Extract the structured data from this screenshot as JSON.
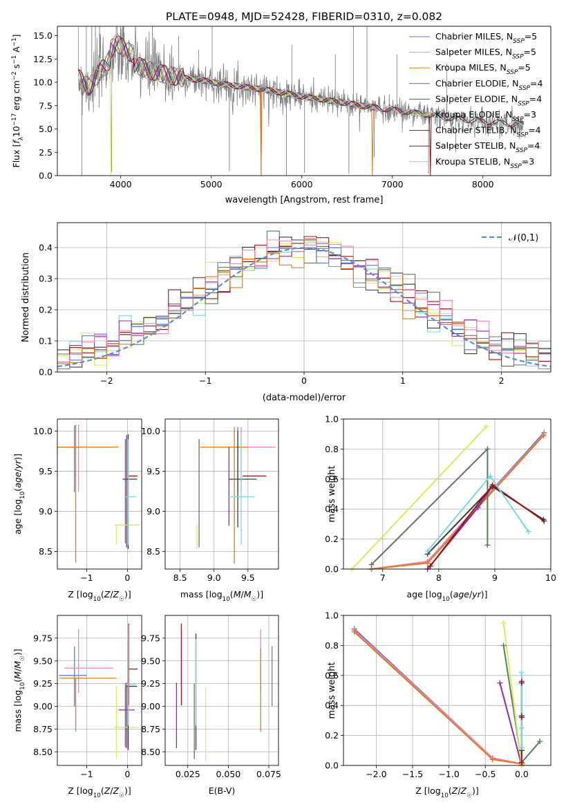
{
  "figure_title": "PLATE=0948, MJD=52428, FIBERID=0310, z=0.082",
  "colors": {
    "Chabrier MILES": "#5a7ad6",
    "Salpeter MILES": "#ee82b6",
    "Kroupa MILES": "#e07b1a",
    "Chabrier ELODIE": "#5d7a5d",
    "Salpeter ELODIE": "#8e2aa6",
    "Kroupa ELODIE": "#d6ec5c",
    "Chabrier STELIB": "#3a3a3a",
    "Salpeter STELIB": "#9b1111",
    "Kroupa STELIB": "#7ad8dc",
    "data": "#7f7f7f",
    "normal_curve": "#5b8bd8"
  },
  "chart_data": [
    {
      "id": "spectrum",
      "type": "line",
      "xlabel": "wavelength [Angstrom, rest frame]",
      "ylabel": "Flux [f_λ10^-17 erg cm^-2 s^-1 A^-1]",
      "xlim": [
        3300,
        8750
      ],
      "ylim": [
        0,
        16
      ],
      "xticks": [
        4000,
        5000,
        6000,
        7000,
        8000
      ],
      "yticks": [
        0.0,
        2.5,
        5.0,
        7.5,
        10.0,
        12.5,
        15.0
      ],
      "legend": "upper right",
      "legend_entries": [
        {
          "name": "Chabrier MILES",
          "n": "5"
        },
        {
          "name": "Salpeter MILES",
          "n": "5"
        },
        {
          "name": "Kroupa MILES",
          "n": "5"
        },
        {
          "name": "Chabrier ELODIE",
          "n": "4"
        },
        {
          "name": "Salpeter ELODIE",
          "n": "4"
        },
        {
          "name": "Kroupa ELODIE",
          "n": "3"
        },
        {
          "name": "Chabrier STELIB",
          "n": "4"
        },
        {
          "name": "Salpeter STELIB",
          "n": "4"
        },
        {
          "name": "Kroupa STELIB",
          "n": "3"
        }
      ],
      "continuum": [
        [
          3530,
          10.5
        ],
        [
          3650,
          9.5
        ],
        [
          3800,
          11.5
        ],
        [
          3950,
          13.2
        ],
        [
          4100,
          12.2
        ],
        [
          4300,
          11.3
        ],
        [
          4600,
          10.6
        ],
        [
          4900,
          10.2
        ],
        [
          5200,
          9.7
        ],
        [
          5600,
          9.2
        ],
        [
          6000,
          8.5
        ],
        [
          6400,
          7.9
        ],
        [
          6800,
          7.3
        ],
        [
          7200,
          6.8
        ],
        [
          7600,
          6.2
        ],
        [
          8000,
          5.8
        ],
        [
          8400,
          5.5
        ]
      ],
      "spikes": [
        [
          3570,
          0
        ],
        [
          3620,
          16
        ],
        [
          3680,
          16
        ],
        [
          3720,
          16
        ],
        [
          3900,
          0.4
        ],
        [
          4020,
          16
        ],
        [
          4350,
          16
        ],
        [
          4640,
          15
        ],
        [
          4860,
          13.5
        ],
        [
          5010,
          16
        ],
        [
          5200,
          0.5
        ],
        [
          5550,
          0
        ],
        [
          5830,
          0
        ],
        [
          5890,
          14
        ],
        [
          6030,
          0.3
        ],
        [
          6370,
          13
        ],
        [
          6520,
          0.2
        ],
        [
          6570,
          16
        ],
        [
          6720,
          16
        ],
        [
          6800,
          2
        ],
        [
          7050,
          13
        ],
        [
          7400,
          0.2
        ],
        [
          7600,
          12
        ],
        [
          7700,
          2.5
        ]
      ],
      "grid": false
    },
    {
      "id": "residuals",
      "type": "step",
      "xlabel": "(data-model)/error",
      "ylabel": "Normed distribution",
      "xlim": [
        -2.5,
        2.5
      ],
      "ylim": [
        0,
        0.48
      ],
      "xticks": [
        -2,
        -1,
        0,
        1,
        2
      ],
      "yticks": [
        0.0,
        0.1,
        0.2,
        0.3,
        0.4
      ],
      "bin_width": 0.125,
      "legend": "upper right",
      "legend_entries": [
        "𝒩(0,1)"
      ],
      "grid": true
    },
    {
      "id": "age-vs-Z",
      "type": "errorbar",
      "xlabel": "Z [log10(Z/Z☉)]",
      "ylabel": "age  [log10(age/yr)]",
      "xlim": [
        -1.72,
        0.35
      ],
      "ylim": [
        8.28,
        10.15
      ],
      "xticks": [
        -1,
        0
      ],
      "yticks": [
        8.5,
        9.0,
        9.5,
        10.0
      ],
      "grid": true,
      "points": [
        {
          "m": "Chabrier MILES",
          "x": -1.3,
          "xe": [
            0.42,
            0
          ],
          "y": 9.8,
          "ye": [
            0.56,
            0.27
          ]
        },
        {
          "m": "Salpeter MILES",
          "x": -1.2,
          "xe": [
            0.0,
            0
          ],
          "y": 9.8,
          "ye": [
            0.56,
            0.28
          ]
        },
        {
          "m": "Kroupa MILES",
          "x": -1.27,
          "xe": [
            0.43,
            1.05
          ],
          "y": 9.8,
          "ye": [
            1.44,
            0.28
          ]
        },
        {
          "m": "Chabrier ELODIE",
          "x": -0.05,
          "xe": [
            0.05,
            0.05
          ],
          "y": 9.4,
          "ye": [
            0.8,
            0.5
          ]
        },
        {
          "m": "Salpeter ELODIE",
          "x": -0.02,
          "xe": [
            0.1,
            0.05
          ],
          "y": 9.4,
          "ye": [
            0.85,
            0.55
          ]
        },
        {
          "m": "Kroupa ELODIE",
          "x": -0.27,
          "xe": [
            0.05,
            0.58
          ],
          "y": 8.83,
          "ye": [
            0.25,
            0.0
          ]
        },
        {
          "m": "Chabrier STELIB",
          "x": 0.02,
          "xe": [
            0.05,
            0.22
          ],
          "y": 9.4,
          "ye": [
            0.87,
            0.56
          ]
        },
        {
          "m": "Salpeter STELIB",
          "x": 0.03,
          "xe": [
            0.0,
            0.22
          ],
          "y": 9.44,
          "ye": [
            0.0,
            0.0
          ]
        },
        {
          "m": "Kroupa STELIB",
          "x": 0.02,
          "xe": [
            0.05,
            0.2
          ],
          "y": 9.18,
          "ye": [
            0.6,
            0.72
          ]
        }
      ]
    },
    {
      "id": "age-vs-mass",
      "type": "errorbar",
      "xlabel": "mass [log10(M/M☉)]",
      "ylabel": "",
      "xlim": [
        8.28,
        9.95
      ],
      "ylim": [
        8.28,
        10.15
      ],
      "xticks": [
        8.5,
        9.0,
        9.5
      ],
      "yticks": [
        8.5,
        9.0,
        9.5,
        10.0
      ],
      "grid": true,
      "points": [
        {
          "m": "Chabrier MILES",
          "x": 9.35,
          "xe": [
            0.08,
            0.08
          ],
          "y": 9.8,
          "ye": [
            0.56,
            0.25
          ]
        },
        {
          "m": "Salpeter MILES",
          "x": 9.4,
          "xe": [
            0.1,
            0.5
          ],
          "y": 9.8,
          "ye": [
            0.56,
            0.25
          ]
        },
        {
          "m": "Kroupa MILES",
          "x": 9.3,
          "xe": [
            0.5,
            0.2
          ],
          "y": 9.8,
          "ye": [
            1.45,
            0.25
          ]
        },
        {
          "m": "Chabrier ELODIE",
          "x": 8.78,
          "xe": [
            0.0,
            0.0
          ],
          "y": 9.8,
          "ye": [
            1.25,
            0.1
          ]
        },
        {
          "m": "Salpeter ELODIE",
          "x": 9.22,
          "xe": [
            0.0,
            0.0
          ],
          "y": 9.35,
          "ye": [
            0.53,
            0.45
          ]
        },
        {
          "m": "Kroupa ELODIE",
          "x": 8.75,
          "xe": [
            0.0,
            0.0
          ],
          "y": 8.83,
          "ye": [
            0.3,
            0.0
          ]
        },
        {
          "m": "Chabrier STELIB",
          "x": 9.35,
          "xe": [
            0.13,
            0.28
          ],
          "y": 9.4,
          "ye": [
            0.6,
            0.6
          ]
        },
        {
          "m": "Salpeter STELIB",
          "x": 9.42,
          "xe": [
            0.0,
            0.35
          ],
          "y": 9.44,
          "ye": [
            0.0,
            0.0
          ]
        },
        {
          "m": "Kroupa STELIB",
          "x": 9.4,
          "xe": [
            0.2,
            0.2
          ],
          "y": 9.18,
          "ye": [
            0.6,
            0.75
          ]
        }
      ]
    },
    {
      "id": "weight-vs-age",
      "type": "line",
      "xlabel": "age  [log10(age/yr)]",
      "ylabel": "mass weight",
      "xlim": [
        6.3,
        10.0
      ],
      "ylim": [
        0,
        1.0
      ],
      "xticks": [
        7,
        8,
        9,
        10
      ],
      "yticks": [
        0.0,
        0.2,
        0.4,
        0.6,
        0.8,
        1.0
      ],
      "grid": true,
      "series": [
        {
          "m": "Chabrier MILES",
          "x": [
            6.8,
            7.8,
            9.88
          ],
          "y": [
            0.0,
            0.05,
            0.91
          ]
        },
        {
          "m": "Salpeter MILES",
          "x": [
            6.8,
            7.8,
            9.88
          ],
          "y": [
            0.0,
            0.05,
            0.9
          ]
        },
        {
          "m": "Kroupa MILES",
          "x": [
            6.8,
            7.8,
            9.87
          ],
          "y": [
            0.0,
            0.04,
            0.89
          ]
        },
        {
          "m": "Chabrier ELODIE",
          "x": [
            6.8,
            8.87,
            8.87
          ],
          "y": [
            0.03,
            0.8,
            0.16
          ]
        },
        {
          "m": "Salpeter ELODIE",
          "x": [
            7.8,
            8.7,
            8.95
          ],
          "y": [
            0.0,
            0.41,
            0.55
          ]
        },
        {
          "m": "Kroupa ELODIE",
          "x": [
            6.45,
            8.85
          ],
          "y": [
            0.0,
            0.95
          ]
        },
        {
          "m": "Chabrier STELIB",
          "x": [
            7.8,
            8.96,
            9.87
          ],
          "y": [
            0.1,
            0.55,
            0.33
          ]
        },
        {
          "m": "Salpeter STELIB",
          "x": [
            7.85,
            8.96,
            9.88
          ],
          "y": [
            0.02,
            0.56,
            0.32
          ]
        },
        {
          "m": "Kroupa STELIB",
          "x": [
            7.8,
            8.92,
            9.6
          ],
          "y": [
            0.12,
            0.62,
            0.25
          ]
        }
      ]
    },
    {
      "id": "mass-vs-Z",
      "type": "errorbar",
      "xlabel": "Z [log10(Z/Z☉)]",
      "ylabel": "mass [log10(M/M☉)]",
      "xlim": [
        -1.72,
        0.35
      ],
      "ylim": [
        8.35,
        10.0
      ],
      "xticks": [
        -1,
        0
      ],
      "yticks": [
        8.5,
        8.75,
        9.0,
        9.25,
        9.5,
        9.75
      ],
      "grid": true,
      "points": [
        {
          "m": "Chabrier MILES",
          "x": -1.3,
          "xe": [
            0.38,
            0.3
          ],
          "y": 9.34,
          "ye": [
            0.34,
            0.32
          ]
        },
        {
          "m": "Salpeter MILES",
          "x": -1.2,
          "xe": [
            0.35,
            0.85
          ],
          "y": 9.42,
          "ye": [
            0.27,
            0.43
          ]
        },
        {
          "m": "Kroupa MILES",
          "x": -1.27,
          "xe": [
            0.4,
            1.0
          ],
          "y": 9.31,
          "ye": [
            0.59,
            0.0
          ]
        },
        {
          "m": "Chabrier ELODIE",
          "x": -0.05,
          "xe": [
            0.05,
            0.05
          ],
          "y": 8.77,
          "ye": [
            0.22,
            0.48
          ]
        },
        {
          "m": "Salpeter ELODIE",
          "x": -0.02,
          "xe": [
            0.2,
            0.2
          ],
          "y": 8.96,
          "ye": [
            0.42,
            0.3
          ]
        },
        {
          "m": "Kroupa ELODIE",
          "x": -0.27,
          "xe": [
            0.05,
            0.55
          ],
          "y": 8.77,
          "ye": [
            0.35,
            0.45
          ]
        },
        {
          "m": "Chabrier STELIB",
          "x": 0.02,
          "xe": [
            0.05,
            0.22
          ],
          "y": 9.22,
          "ye": [
            0.7,
            0.5
          ]
        },
        {
          "m": "Salpeter STELIB",
          "x": 0.03,
          "xe": [
            0.0,
            0.22
          ],
          "y": 9.41,
          "ye": [
            0.4,
            0.5
          ]
        },
        {
          "m": "Kroupa STELIB",
          "x": 0.02,
          "xe": [
            0.05,
            0.2
          ],
          "y": 9.24,
          "ye": [
            0.45,
            0.65
          ]
        }
      ]
    },
    {
      "id": "mass-vs-EBV",
      "type": "errorbar",
      "xlabel": "E(B-V)",
      "ylabel": "",
      "xlim": [
        0.011,
        0.081
      ],
      "ylim": [
        8.35,
        10.0
      ],
      "xticks": [
        0.025,
        0.05,
        0.075
      ],
      "yticks": [
        8.5,
        8.75,
        9.0,
        9.25,
        9.5,
        9.75
      ],
      "grid": true,
      "points": [
        {
          "m": "Chabrier MILES",
          "x": 0.077,
          "y": 9.34,
          "ye": [
            0.34,
            0.32
          ]
        },
        {
          "m": "Salpeter MILES",
          "x": 0.07,
          "y": 9.42,
          "ye": [
            0.27,
            0.43
          ]
        },
        {
          "m": "Kroupa MILES",
          "x": 0.07,
          "y": 9.31,
          "ye": [
            0.59,
            0.33
          ]
        },
        {
          "m": "Chabrier ELODIE",
          "x": 0.029,
          "y": 8.77,
          "ye": [
            0.35,
            0.48
          ]
        },
        {
          "m": "Salpeter ELODIE",
          "x": 0.018,
          "y": 8.96,
          "ye": [
            0.42,
            0.3
          ]
        },
        {
          "m": "Kroupa ELODIE",
          "x": 0.036,
          "y": 8.85,
          "ye": [
            0.45,
            0.36
          ]
        },
        {
          "m": "Chabrier STELIB",
          "x": 0.03,
          "y": 9.22,
          "ye": [
            0.7,
            0.58
          ]
        },
        {
          "m": "Salpeter STELIB",
          "x": 0.021,
          "y": 9.41,
          "ye": [
            0.4,
            0.5
          ]
        },
        {
          "m": "Kroupa STELIB",
          "x": 0.03,
          "y": 9.24,
          "ye": [
            0.45,
            0.5
          ]
        }
      ]
    },
    {
      "id": "weight-vs-Z",
      "type": "line",
      "xlabel": "Z [log10(Z/Z☉)]",
      "ylabel": "mass weight",
      "xlim": [
        -2.45,
        0.4
      ],
      "ylim": [
        0,
        1.0
      ],
      "xticks": [
        -2.0,
        -1.5,
        -1.0,
        -0.5,
        0.0
      ],
      "yticks": [
        0.0,
        0.2,
        0.4,
        0.6,
        0.8,
        1.0
      ],
      "grid": true,
      "series": [
        {
          "m": "Chabrier MILES",
          "x": [
            -2.3,
            -0.4,
            0.0
          ],
          "y": [
            0.91,
            0.05,
            0.01
          ]
        },
        {
          "m": "Salpeter MILES",
          "x": [
            -2.3,
            -0.4,
            0.0
          ],
          "y": [
            0.9,
            0.05,
            0.01
          ]
        },
        {
          "m": "Kroupa MILES",
          "x": [
            -2.3,
            -0.4,
            0.0
          ],
          "y": [
            0.89,
            0.04,
            0.01
          ]
        },
        {
          "m": "Chabrier ELODIE",
          "x": [
            -0.25,
            0.0,
            0.25
          ],
          "y": [
            0.8,
            0.02,
            0.16
          ]
        },
        {
          "m": "Salpeter ELODIE",
          "x": [
            -0.3,
            0.0
          ],
          "y": [
            0.55,
            0.0
          ]
        },
        {
          "m": "Kroupa ELODIE",
          "x": [
            -0.25,
            0.0
          ],
          "y": [
            0.95,
            0.0
          ]
        },
        {
          "m": "Chabrier STELIB",
          "x": [
            0.0,
            0.0,
            0.0
          ],
          "y": [
            0.55,
            0.1,
            0.33
          ]
        },
        {
          "m": "Salpeter STELIB",
          "x": [
            0.0,
            0.0,
            0.0
          ],
          "y": [
            0.56,
            0.02,
            0.32
          ]
        },
        {
          "m": "Kroupa STELIB",
          "x": [
            0.0,
            0.0,
            0.0
          ],
          "y": [
            0.62,
            0.12,
            0.25
          ]
        }
      ]
    }
  ]
}
